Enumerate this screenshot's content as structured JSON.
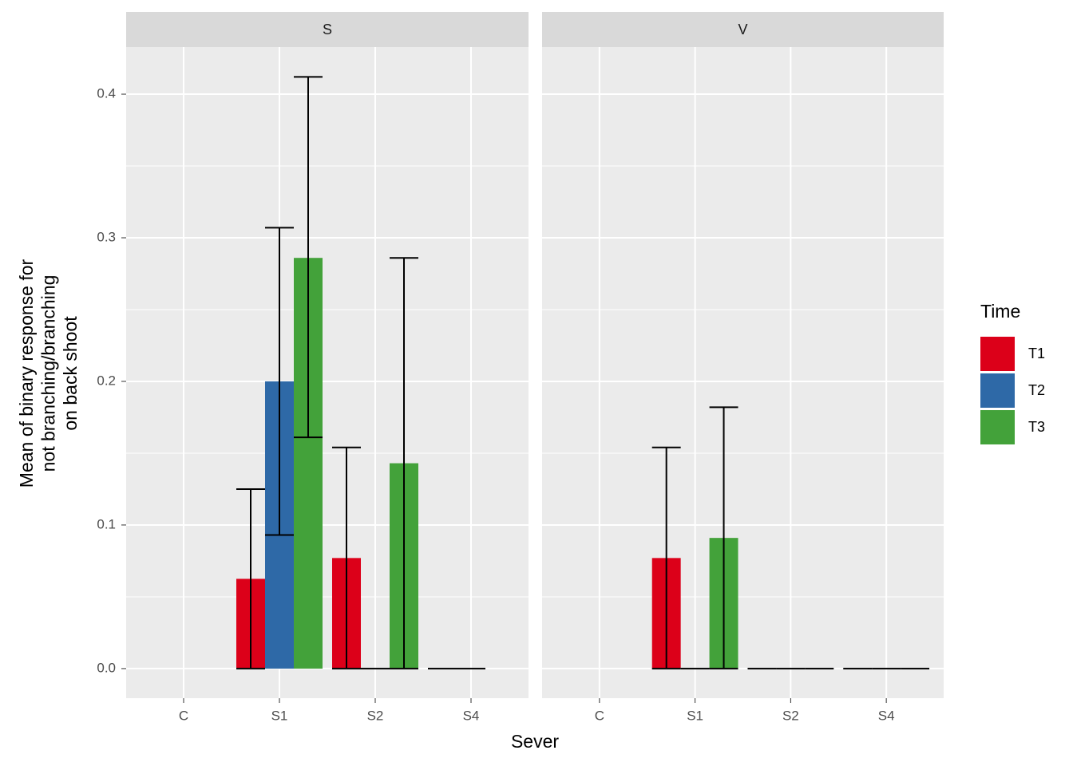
{
  "chart_data": {
    "type": "bar",
    "x_label": "Sever",
    "y_label": [
      "Mean of binary response for",
      "not branching/branching",
      "on back shoot"
    ],
    "legend_title": "Time",
    "categories": [
      "C",
      "S1",
      "S2",
      "S4"
    ],
    "ylim": [
      -0.0206,
      0.4328
    ],
    "yticks": [
      {
        "value": 0,
        "label": "0.0"
      },
      0.1,
      0.2,
      0.3,
      0.4
    ],
    "minor_yticks": [
      0.05,
      0.15,
      0.25,
      0.35
    ],
    "grid": true,
    "series": [
      {
        "name": "T1",
        "color": "#dc0019"
      },
      {
        "name": "T2",
        "color": "#2e69a7"
      },
      {
        "name": "T3",
        "color": "#43a23a"
      }
    ],
    "facets": [
      {
        "title": "S",
        "data": [
          {
            "values": [
              null,
              0.0625,
              0.077,
              0
            ],
            "lower": [
              null,
              0,
              0,
              0
            ],
            "upper": [
              null,
              0.125,
              0.154,
              0
            ]
          },
          {
            "values": [
              null,
              0.2,
              0,
              0
            ],
            "lower": [
              null,
              0.093,
              0,
              0
            ],
            "upper": [
              null,
              0.307,
              0,
              0
            ]
          },
          {
            "values": [
              null,
              0.286,
              0.143,
              null
            ],
            "lower": [
              null,
              0.161,
              0,
              null
            ],
            "upper": [
              null,
              0.412,
              0.286,
              null
            ]
          }
        ]
      },
      {
        "title": "V",
        "data": [
          {
            "values": [
              null,
              0.077,
              0,
              0
            ],
            "lower": [
              null,
              0,
              0,
              0
            ],
            "upper": [
              null,
              0.154,
              0,
              0
            ]
          },
          {
            "values": [
              null,
              0,
              0,
              0
            ],
            "lower": [
              null,
              0,
              0,
              0
            ],
            "upper": [
              null,
              0,
              0,
              0
            ]
          },
          {
            "values": [
              null,
              0.091,
              0,
              0
            ],
            "lower": [
              null,
              0,
              0,
              0
            ],
            "upper": [
              null,
              0.182,
              0,
              0
            ]
          }
        ]
      }
    ]
  }
}
